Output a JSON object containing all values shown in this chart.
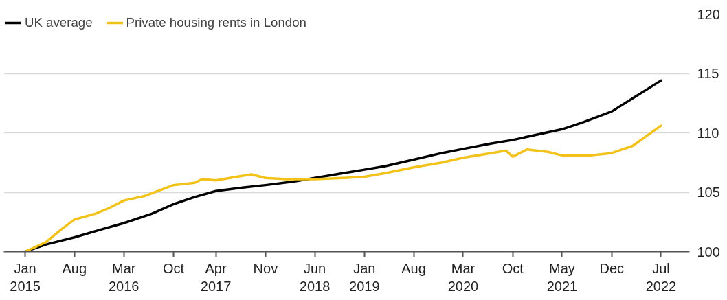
{
  "chart_data": {
    "type": "line",
    "legend": "top left",
    "grid": "y",
    "line_style": "solid",
    "xlim": [
      "2014-10",
      "2022-11"
    ],
    "ylim": [
      100,
      120
    ],
    "yticks": [
      100,
      105,
      110,
      115,
      120
    ],
    "xticks": [
      {
        "value": "2015-01",
        "label": "Jan\n2015"
      },
      {
        "value": "2015-08",
        "label": "Aug"
      },
      {
        "value": "2016-03",
        "label": "Mar\n2016"
      },
      {
        "value": "2016-10",
        "label": "Oct"
      },
      {
        "value": "2017-04",
        "label": "Apr\n2017"
      },
      {
        "value": "2017-11",
        "label": "Nov"
      },
      {
        "value": "2018-06",
        "label": "Jun\n2018"
      },
      {
        "value": "2019-01",
        "label": "Jan\n2019"
      },
      {
        "value": "2019-08",
        "label": "Aug"
      },
      {
        "value": "2020-03",
        "label": "Mar\n2020"
      },
      {
        "value": "2020-10",
        "label": "Oct"
      },
      {
        "value": "2021-05",
        "label": "May\n2021"
      },
      {
        "value": "2021-12",
        "label": "Dec"
      },
      {
        "value": "2022-07",
        "label": "Jul\n2022"
      }
    ],
    "series": [
      {
        "name": "UK average",
        "color": "#000000",
        "x": [
          "2015-01",
          "2015-04",
          "2015-08",
          "2015-12",
          "2016-03",
          "2016-07",
          "2016-10",
          "2017-01",
          "2017-04",
          "2017-08",
          "2017-11",
          "2018-03",
          "2018-06",
          "2018-10",
          "2019-01",
          "2019-04",
          "2019-08",
          "2019-12",
          "2020-03",
          "2020-07",
          "2020-10",
          "2021-01",
          "2021-05",
          "2021-08",
          "2021-12",
          "2022-03",
          "2022-07"
        ],
        "values": [
          100,
          100.6,
          101.2,
          101.9,
          102.4,
          103.2,
          104.0,
          104.6,
          105.1,
          105.4,
          105.6,
          105.9,
          106.2,
          106.6,
          106.9,
          107.2,
          107.75,
          108.3,
          108.65,
          109.1,
          109.4,
          109.8,
          110.3,
          110.9,
          111.8,
          112.9,
          114.4
        ]
      },
      {
        "name": "Private housing rents in London",
        "color": "#f2c21b",
        "x": [
          "2015-01",
          "2015-04",
          "2015-06",
          "2015-08",
          "2015-11",
          "2016-01",
          "2016-03",
          "2016-06",
          "2016-10",
          "2017-01",
          "2017-02",
          "2017-04",
          "2017-07",
          "2017-09",
          "2017-11",
          "2018-02",
          "2018-06",
          "2018-10",
          "2019-01",
          "2019-04",
          "2019-08",
          "2019-12",
          "2020-03",
          "2020-07",
          "2020-09",
          "2020-10",
          "2020-12",
          "2021-03",
          "2021-05",
          "2021-09",
          "2021-12",
          "2022-03",
          "2022-07"
        ],
        "values": [
          100,
          100.8,
          101.8,
          102.7,
          103.2,
          103.7,
          104.3,
          104.7,
          105.6,
          105.8,
          106.1,
          106.0,
          106.3,
          106.5,
          106.2,
          106.1,
          106.1,
          106.2,
          106.3,
          106.6,
          107.1,
          107.5,
          107.9,
          108.3,
          108.5,
          108.0,
          108.6,
          108.4,
          108.1,
          108.1,
          108.3,
          108.9,
          110.6
        ]
      }
    ]
  }
}
